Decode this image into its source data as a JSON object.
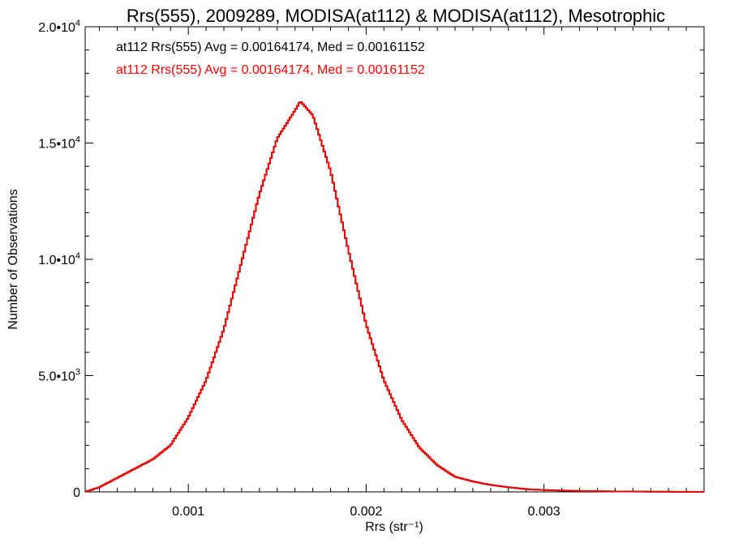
{
  "chart_data": {
    "type": "line",
    "title": "Rrs(555), 2009289, MODISA(at112) & MODISA(at112), Mesotrophic",
    "xlabel": "Rrs (str⁻¹)",
    "ylabel": "Number of Observations",
    "xlim": [
      0.00042,
      0.0039
    ],
    "ylim": [
      0,
      20000
    ],
    "x_ticks": [
      {
        "value": 0.001,
        "label": "0.001"
      },
      {
        "value": 0.002,
        "label": "0.002"
      },
      {
        "value": 0.003,
        "label": "0.003"
      }
    ],
    "y_ticks": [
      {
        "value": 0,
        "label": "0",
        "exp": ""
      },
      {
        "value": 5000,
        "label": "5.0•10",
        "exp": "3"
      },
      {
        "value": 10000,
        "label": "1.0•10",
        "exp": "4"
      },
      {
        "value": 15000,
        "label": "1.5•10",
        "exp": "4"
      },
      {
        "value": 20000,
        "label": "2.0•10",
        "exp": "4"
      }
    ],
    "grid": false,
    "annotations": [
      {
        "text": "at112 Rrs(555) Avg = 0.00164174, Med = 0.00161152",
        "color": "#000000"
      },
      {
        "text": "at112 Rrs(555) Avg = 0.00164174, Med = 0.00161152",
        "color": "#ff0000"
      }
    ],
    "series": [
      {
        "color": "#000000",
        "x": [
          0.00042,
          0.0005,
          0.0006,
          0.0007,
          0.0008,
          0.0009,
          0.001,
          0.0011,
          0.0012,
          0.0013,
          0.0014,
          0.0015,
          0.0016,
          0.00163,
          0.0017,
          0.0018,
          0.0019,
          0.002,
          0.0021,
          0.0022,
          0.0023,
          0.0024,
          0.0025,
          0.0026,
          0.0027,
          0.0028,
          0.0029,
          0.003,
          0.0032,
          0.0034,
          0.0036,
          0.0039
        ],
        "y": [
          0,
          200,
          600,
          1000,
          1400,
          2000,
          3200,
          4800,
          7000,
          9900,
          12800,
          15200,
          16400,
          16800,
          16200,
          13800,
          10400,
          7200,
          4800,
          3100,
          1900,
          1150,
          650,
          450,
          300,
          200,
          120,
          80,
          40,
          20,
          10,
          0
        ]
      },
      {
        "color": "#ff0000",
        "x": [
          0.00042,
          0.0005,
          0.0006,
          0.0007,
          0.0008,
          0.0009,
          0.001,
          0.0011,
          0.0012,
          0.0013,
          0.0014,
          0.0015,
          0.0016,
          0.00163,
          0.0017,
          0.0018,
          0.0019,
          0.002,
          0.0021,
          0.0022,
          0.0023,
          0.0024,
          0.0025,
          0.0026,
          0.0027,
          0.0028,
          0.0029,
          0.003,
          0.0032,
          0.0034,
          0.0036,
          0.0039
        ],
        "y": [
          0,
          200,
          600,
          1000,
          1400,
          2000,
          3200,
          4800,
          7000,
          9900,
          12800,
          15200,
          16400,
          16800,
          16200,
          13800,
          10400,
          7200,
          4800,
          3100,
          1900,
          1150,
          650,
          450,
          300,
          200,
          120,
          80,
          40,
          20,
          10,
          0
        ]
      }
    ]
  }
}
